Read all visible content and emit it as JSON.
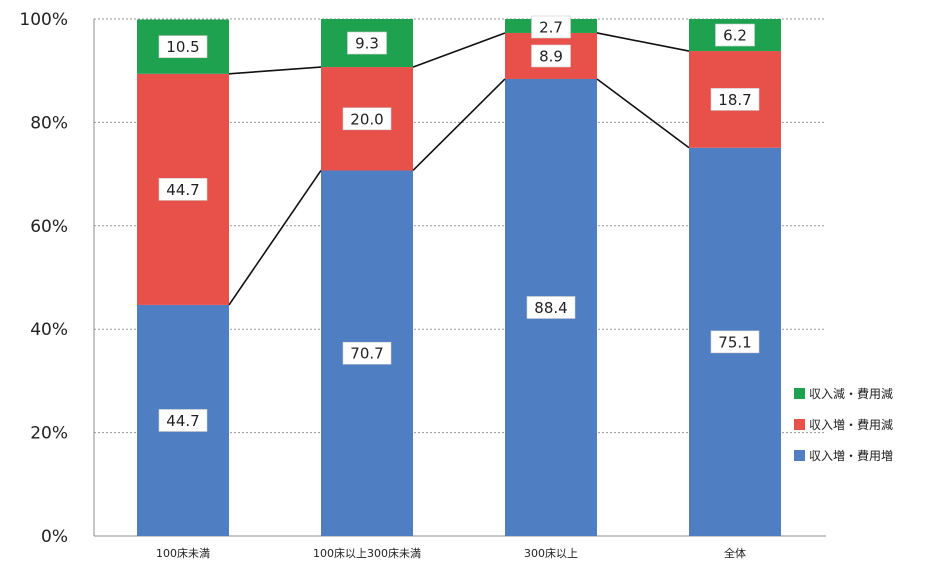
{
  "chart_data": {
    "type": "bar",
    "stacked": true,
    "categories": [
      "100床未満",
      "100床以上300床未満",
      "300床以上",
      "全体"
    ],
    "series": [
      {
        "name": "収入増・費用増",
        "values": [
          44.7,
          70.7,
          88.4,
          75.1
        ],
        "labels": [
          "44.7",
          "70.7",
          "88.4",
          "75.1"
        ],
        "color": "#4f7ec2"
      },
      {
        "name": "収入増・費用減",
        "values": [
          44.7,
          20.0,
          8.9,
          18.7
        ],
        "labels": [
          "44.7",
          "20.0",
          "8.9",
          "18.7"
        ],
        "color": "#e8504a"
      },
      {
        "name": "収入減・費用減",
        "values": [
          10.5,
          9.3,
          2.7,
          6.2
        ],
        "labels": [
          "10.5",
          "9.3",
          "2.7",
          "6.2"
        ],
        "color": "#1ea24f"
      }
    ],
    "yticks": [
      "0%",
      "20%",
      "40%",
      "60%",
      "80%",
      "100%"
    ],
    "ylim": [
      0,
      100
    ],
    "grid": true,
    "series_lines": true,
    "legend_position": "right"
  }
}
